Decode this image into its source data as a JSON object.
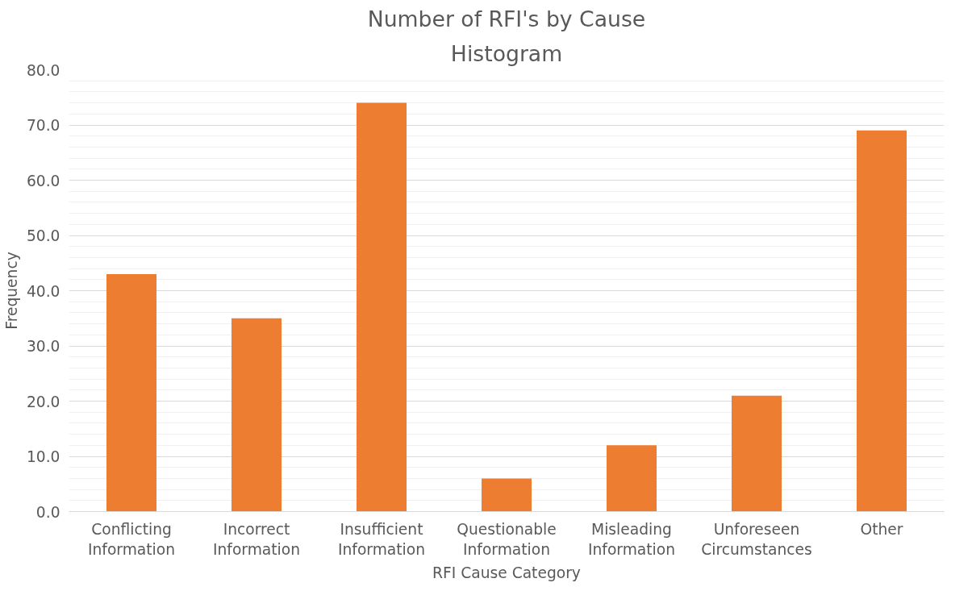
{
  "chart_data": {
    "type": "bar",
    "title": "Number of RFI's by Cause",
    "subtitle": "Histogram",
    "xlabel": "RFI Cause Category",
    "ylabel": "Frequency",
    "categories": [
      "Conflicting Information",
      "Incorrect Information",
      "Insufficient Information",
      "Questionable Information",
      "Misleading Information",
      "Unforeseen Circumstances",
      "Other"
    ],
    "values": [
      43,
      35,
      74,
      6,
      12,
      21,
      69
    ],
    "color": "#ed7d31",
    "ylim": [
      0,
      80
    ],
    "yticks": [
      {
        "value": 0,
        "label": "0.0"
      },
      {
        "value": 10,
        "label": "10.0"
      },
      {
        "value": 20,
        "label": "20.0"
      },
      {
        "value": 30,
        "label": "30.0"
      },
      {
        "value": 40,
        "label": "40.0"
      },
      {
        "value": 50,
        "label": "50.0"
      },
      {
        "value": 60,
        "label": "60.0"
      },
      {
        "value": 70,
        "label": "70.0"
      },
      {
        "value": 80,
        "label": "80.0"
      }
    ],
    "grid": "y"
  }
}
